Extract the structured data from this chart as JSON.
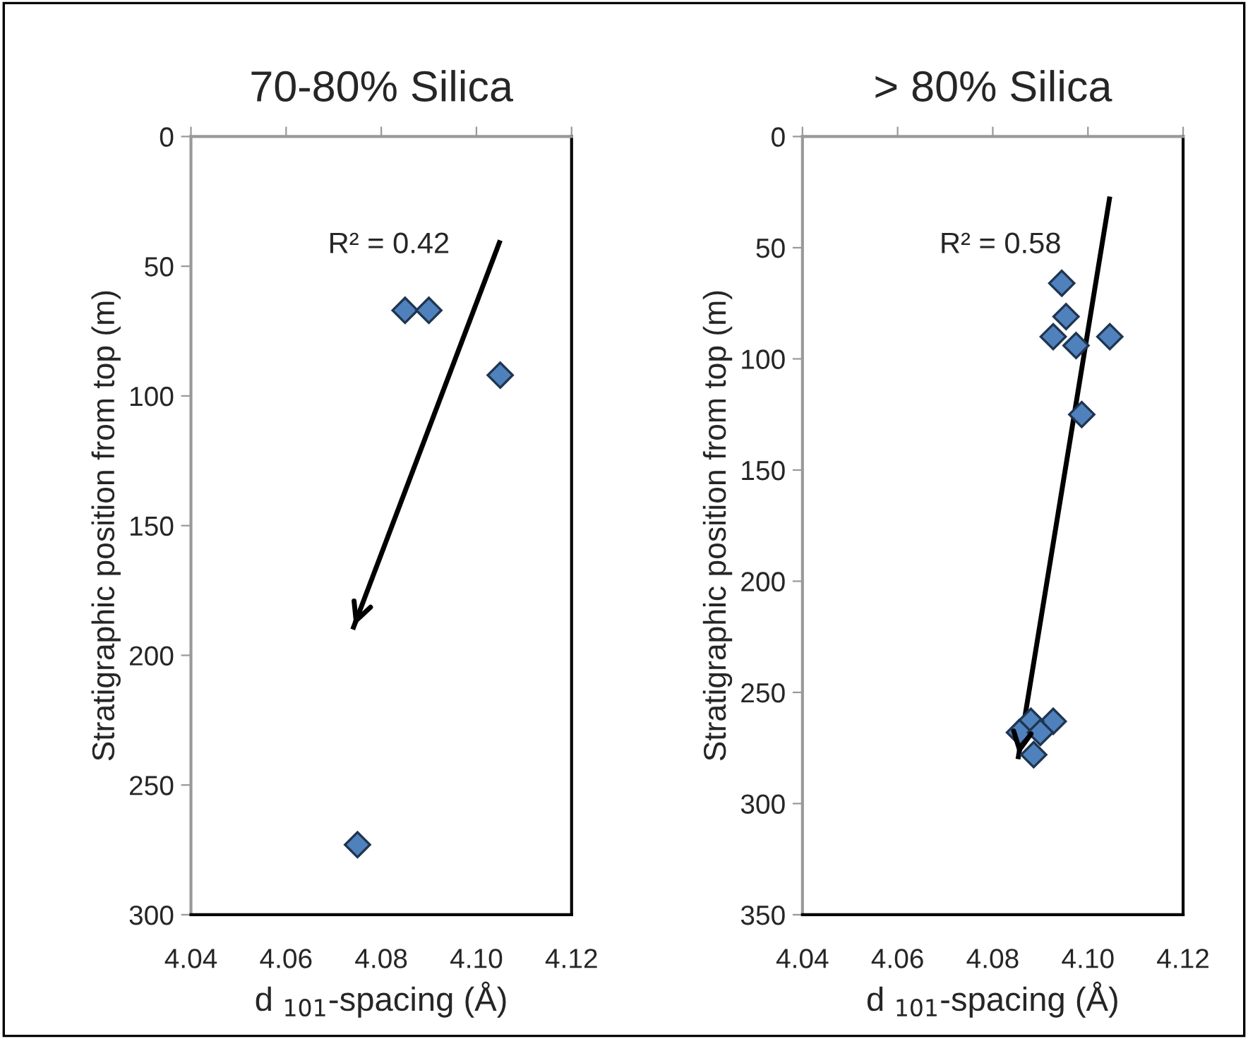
{
  "chart_data": [
    {
      "type": "scatter",
      "title": "70-80% Silica",
      "xlabel": "d $_{101}$-spacing (Å)",
      "ylabel": "Stratigraphic position from top (m)",
      "marker": "diamond",
      "grid": false,
      "xlim": [
        4.04,
        4.12
      ],
      "xticks": [
        {
          "value": 4.04,
          "label": "4.04"
        },
        {
          "value": 4.06,
          "label": "4.06"
        },
        {
          "value": 4.08,
          "label": "4.08"
        },
        {
          "value": 4.1,
          "label": "4.10"
        },
        {
          "value": 4.12,
          "label": "4.12"
        }
      ],
      "ylim": [
        300,
        0
      ],
      "yticks": [
        0,
        50,
        100,
        150,
        200,
        250,
        300
      ],
      "annotations": [
        "R² = 0.42"
      ],
      "series": [
        {
          "color": "#4f81bd",
          "x": [
            4.085,
            4.09,
            4.105,
            4.075
          ],
          "values": [
            67,
            67,
            92,
            273
          ]
        },
        {
          "type": "line",
          "marker": "none",
          "color": "#000000",
          "x": [
            4.105,
            4.074
          ],
          "values": [
            40,
            190
          ]
        }
      ]
    },
    {
      "type": "scatter",
      "title": "> 80% Silica",
      "xlabel": "d $_{101}$-spacing (Å)",
      "ylabel": "Stratigraphic position from top (m)",
      "marker": "diamond",
      "grid": false,
      "xlim": [
        4.04,
        4.12
      ],
      "xticks": [
        {
          "value": 4.04,
          "label": "4.04"
        },
        {
          "value": 4.06,
          "label": "4.06"
        },
        {
          "value": 4.08,
          "label": "4.08"
        },
        {
          "value": 4.1,
          "label": "4.10"
        },
        {
          "value": 4.12,
          "label": "4.12"
        }
      ],
      "ylim": [
        350,
        0
      ],
      "yticks": [
        0,
        50,
        100,
        150,
        200,
        250,
        300,
        350
      ],
      "annotations": [
        "R² = 0.58"
      ],
      "series": [
        {
          "color": "#4f81bd",
          "x": [
            4.0945,
            4.0954,
            4.0927,
            4.0975,
            4.1046,
            4.0987,
            4.0927,
            4.088,
            4.0856,
            4.09,
            4.0886
          ],
          "values": [
            66,
            81,
            90,
            94,
            90,
            125,
            263,
            263,
            268,
            268,
            278
          ]
        },
        {
          "type": "line",
          "marker": "none",
          "color": "#000000",
          "x": [
            4.1046,
            4.0853
          ],
          "values": [
            27,
            280
          ]
        }
      ]
    }
  ]
}
